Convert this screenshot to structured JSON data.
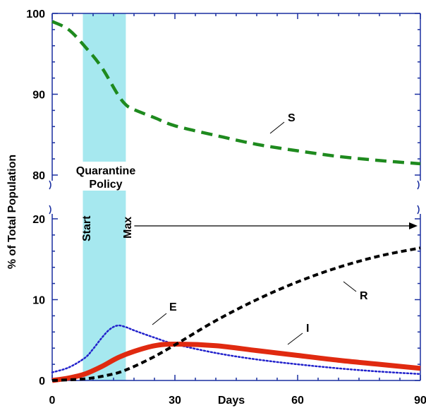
{
  "chart_data": {
    "type": "line",
    "title": "",
    "xlabel": "Days",
    "ylabel": "% of Total Population",
    "xlim": [
      0,
      90
    ],
    "x_ticks": [
      0,
      30,
      60,
      90
    ],
    "x_tick_labels": [
      "0",
      "30",
      "",
      "90"
    ],
    "panels": [
      {
        "name": "top",
        "ylim": [
          80,
          100
        ],
        "y_ticks": [
          80,
          90,
          100
        ],
        "series": [
          {
            "name": "S",
            "color": "#1e8a1e",
            "style": "dashed",
            "points": [
              [
                0,
                99.0
              ],
              [
                4,
                98.0
              ],
              [
                8,
                95.9
              ],
              [
                12,
                93.4
              ],
              [
                16,
                90.0
              ],
              [
                18,
                88.7
              ],
              [
                20,
                88.1
              ],
              [
                25,
                87.1
              ],
              [
                30,
                86.1
              ],
              [
                40,
                84.9
              ],
              [
                50,
                83.8
              ],
              [
                60,
                83.0
              ],
              [
                70,
                82.3
              ],
              [
                80,
                81.8
              ],
              [
                90,
                81.4
              ]
            ]
          }
        ]
      },
      {
        "name": "bottom",
        "ylim": [
          0,
          20
        ],
        "y_ticks": [
          0,
          10,
          20
        ],
        "series": [
          {
            "name": "E",
            "color": "#2222cc",
            "style": "dotted",
            "points": [
              [
                0,
                1.0
              ],
              [
                4,
                1.6
              ],
              [
                8,
                2.8
              ],
              [
                10,
                3.9
              ],
              [
                12,
                5.2
              ],
              [
                14,
                6.3
              ],
              [
                16,
                6.8
              ],
              [
                18,
                6.6
              ],
              [
                20,
                6.2
              ],
              [
                25,
                5.3
              ],
              [
                30,
                4.5
              ],
              [
                40,
                3.4
              ],
              [
                50,
                2.6
              ],
              [
                60,
                2.0
              ],
              [
                70,
                1.5
              ],
              [
                80,
                1.1
              ],
              [
                90,
                0.8
              ]
            ]
          },
          {
            "name": "I",
            "color": "#e02a10",
            "style": "solid-thick",
            "points": [
              [
                0,
                0
              ],
              [
                4,
                0.3
              ],
              [
                8,
                0.8
              ],
              [
                12,
                1.7
              ],
              [
                16,
                2.8
              ],
              [
                20,
                3.6
              ],
              [
                25,
                4.3
              ],
              [
                30,
                4.5
              ],
              [
                40,
                4.3
              ],
              [
                50,
                3.7
              ],
              [
                60,
                3.1
              ],
              [
                70,
                2.5
              ],
              [
                80,
                2.0
              ],
              [
                90,
                1.5
              ]
            ]
          },
          {
            "name": "R",
            "color": "#000000",
            "style": "dashed",
            "points": [
              [
                0,
                0
              ],
              [
                8,
                0.2
              ],
              [
                14,
                0.7
              ],
              [
                18,
                1.3
              ],
              [
                24,
                2.7
              ],
              [
                30,
                4.4
              ],
              [
                40,
                7.4
              ],
              [
                50,
                10.0
              ],
              [
                60,
                12.2
              ],
              [
                70,
                14.0
              ],
              [
                80,
                15.4
              ],
              [
                90,
                16.4
              ]
            ]
          }
        ]
      }
    ],
    "annotations": {
      "quarantine_label": [
        "Quarantine",
        "Policy"
      ],
      "start_label": "Start",
      "max_label": "Max",
      "quarantine_start_day": 7.5,
      "quarantine_end_day": 18,
      "shade_color": "#a6e8ef"
    }
  }
}
